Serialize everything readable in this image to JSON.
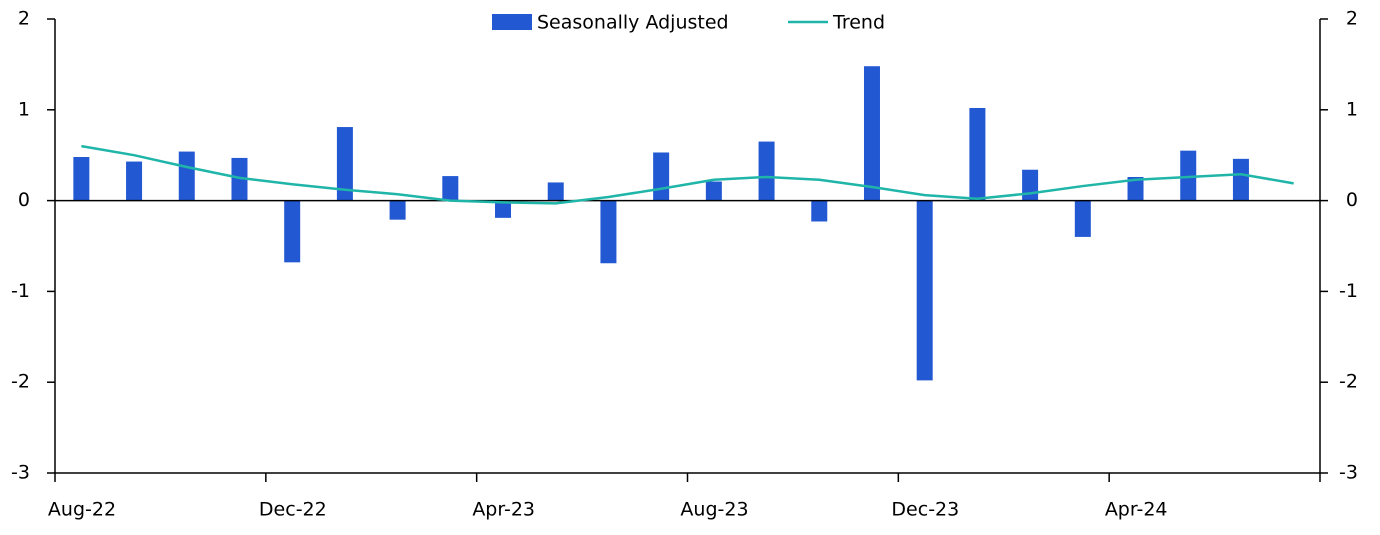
{
  "chart_data": {
    "type": "bar_line",
    "categories": [
      "Aug-22",
      null,
      null,
      null,
      "Dec-22",
      null,
      null,
      null,
      "Apr-23",
      null,
      null,
      null,
      "Aug-23",
      null,
      null,
      null,
      "Dec-23",
      null,
      null,
      null,
      "Apr-24",
      null,
      null,
      null
    ],
    "series": [
      {
        "name": "Seasonally Adjusted",
        "type": "bar",
        "color": "#2358d3",
        "values": [
          0.48,
          0.43,
          0.54,
          0.47,
          -0.68,
          0.81,
          -0.21,
          0.27,
          -0.19,
          0.2,
          -0.69,
          0.53,
          0.21,
          0.65,
          -0.23,
          1.48,
          -1.98,
          1.02,
          0.34,
          -0.4,
          0.26,
          0.55,
          0.46,
          null
        ]
      },
      {
        "name": "Trend",
        "type": "line",
        "color": "#1fb5a8",
        "values": [
          0.6,
          0.5,
          0.37,
          0.25,
          0.18,
          0.12,
          0.07,
          0.0,
          -0.02,
          -0.03,
          0.04,
          0.13,
          0.23,
          0.26,
          0.23,
          0.15,
          0.06,
          0.02,
          0.08,
          0.16,
          0.23,
          0.26,
          0.29,
          0.19
        ]
      }
    ],
    "ylim": [
      -3,
      2
    ],
    "yticks": [
      -3,
      -2,
      -1,
      0,
      1,
      2
    ],
    "y2lim": [
      -3,
      2
    ],
    "y2ticks": [
      -3,
      -2,
      -1,
      0,
      1,
      2
    ],
    "legend": "top"
  }
}
